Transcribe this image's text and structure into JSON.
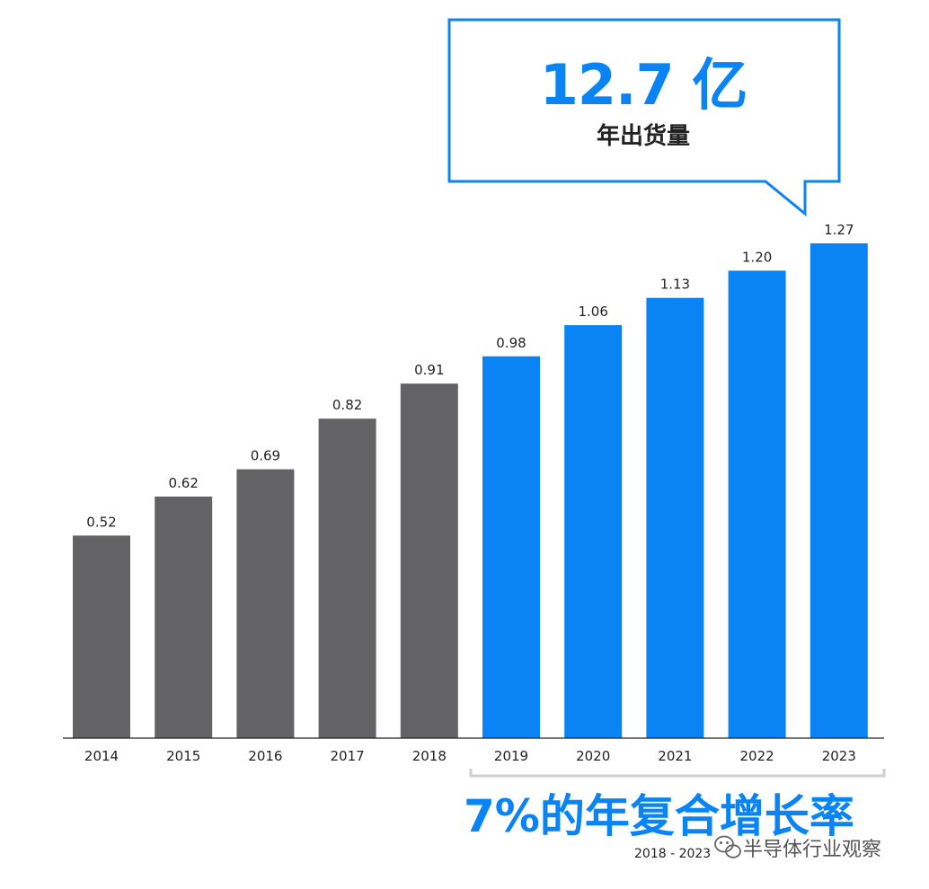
{
  "colors": {
    "historical": "#636366",
    "forecast": "#0a84f5",
    "text": "#222222",
    "axis": "#222222",
    "bracket": "#cfcfcf"
  },
  "callout": {
    "value": "12.7 亿",
    "subtitle": "年出货量"
  },
  "cagr": {
    "text": "7%的年复合增长率",
    "range": "2018 - 2023"
  },
  "watermark": {
    "text": "半导体行业观察",
    "icon": "wechat-icon"
  },
  "chart_data": {
    "type": "bar",
    "categories": [
      "2014",
      "2015",
      "2016",
      "2017",
      "2018",
      "2019",
      "2020",
      "2021",
      "2022",
      "2023"
    ],
    "values": [
      0.52,
      0.62,
      0.69,
      0.82,
      0.91,
      0.98,
      1.06,
      1.13,
      1.2,
      1.27
    ],
    "data_labels": [
      "0.52",
      "0.62",
      "0.69",
      "0.82",
      "0.91",
      "0.98",
      "1.06",
      "1.13",
      "1.20",
      "1.27"
    ],
    "series_split": {
      "historical": [
        "2014",
        "2015",
        "2016",
        "2017",
        "2018"
      ],
      "forecast": [
        "2019",
        "2020",
        "2021",
        "2022",
        "2023"
      ]
    },
    "title": "",
    "xlabel": "",
    "ylabel": "",
    "ylim": [
      0,
      1.35
    ],
    "grid": false,
    "legend": "none"
  }
}
